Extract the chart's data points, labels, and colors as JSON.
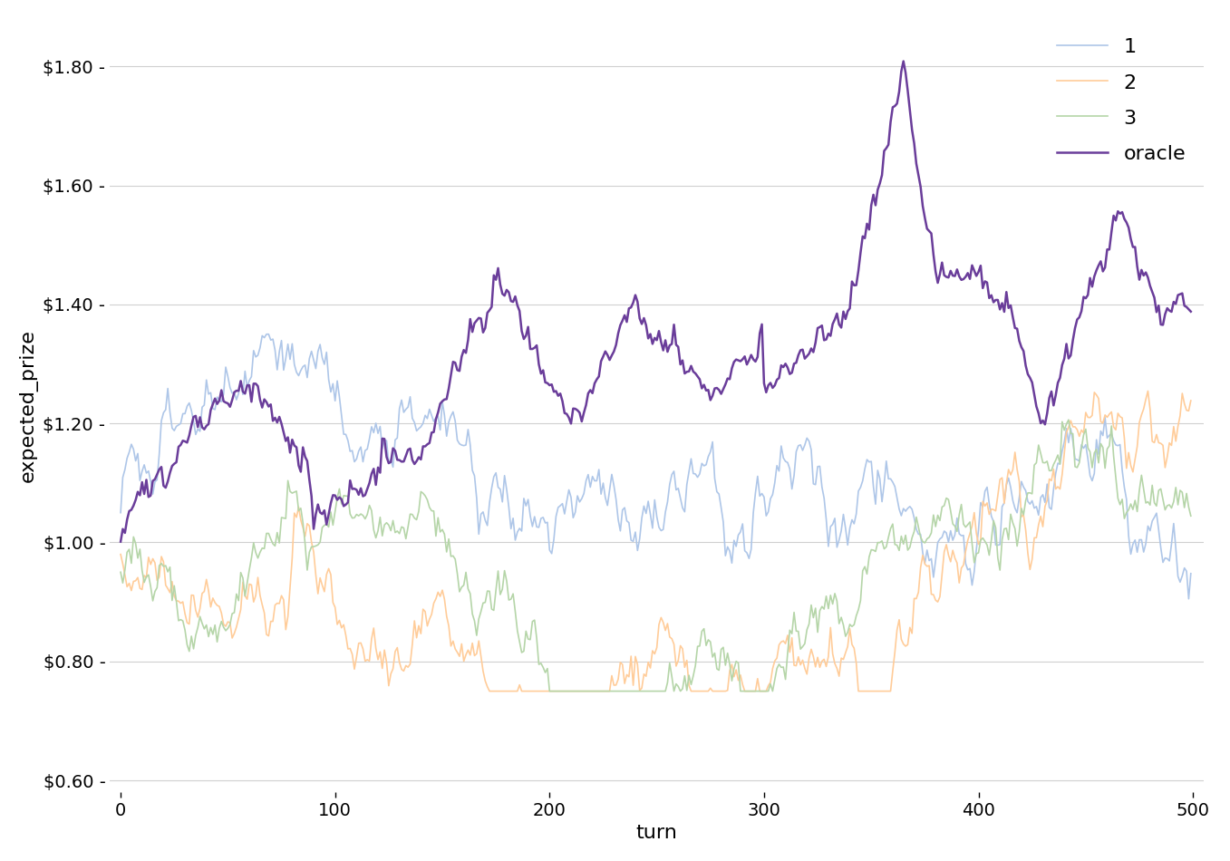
{
  "n": 500,
  "colors": {
    "arm1": "#aec6e8",
    "arm2": "#ffcc99",
    "arm3": "#b5d5a8",
    "oracle": "#6a3d9a"
  },
  "linewidths": {
    "arm1": 1.2,
    "arm2": 1.2,
    "arm3": 1.2,
    "oracle": 1.8
  },
  "xlabel": "turn",
  "ylabel": "expected_prize",
  "xlim": [
    -5,
    505
  ],
  "ylim": [
    0.58,
    1.88
  ],
  "yticks": [
    0.6,
    0.8,
    1.0,
    1.2,
    1.4,
    1.6,
    1.8
  ],
  "xticks": [
    0,
    100,
    200,
    300,
    400,
    500
  ],
  "legend_labels": [
    "1",
    "2",
    "3",
    "oracle"
  ],
  "legend_loc": "upper right",
  "background_color": "#ffffff",
  "grid_color": "#d0d0d0",
  "xlabel_fontsize": 16,
  "ylabel_fontsize": 16,
  "tick_fontsize": 14,
  "legend_fontsize": 16
}
